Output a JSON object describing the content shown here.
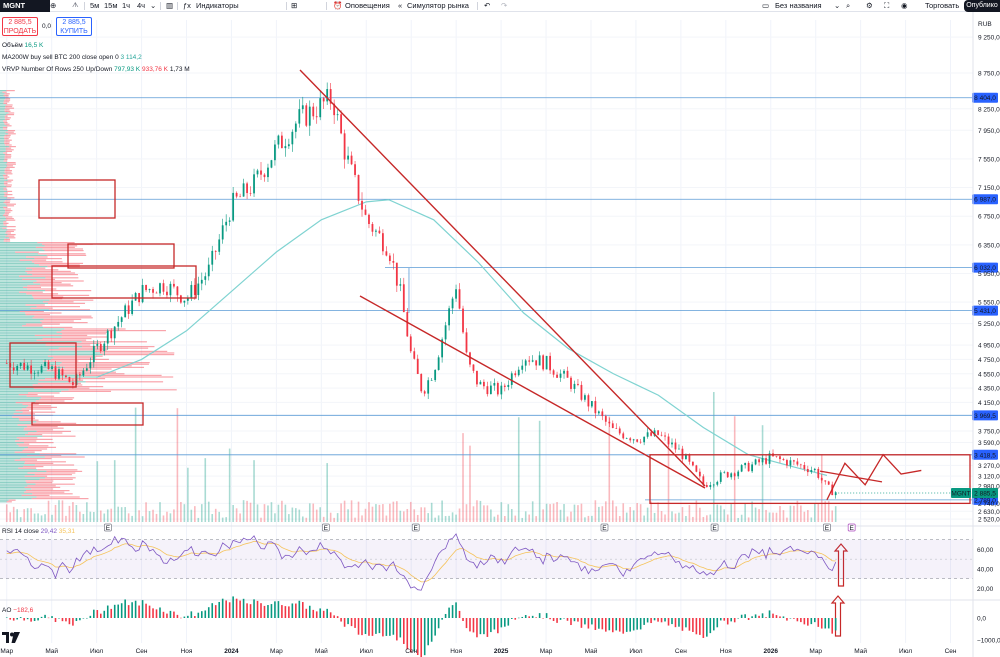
{
  "toolbar": {
    "symbol": "MGNT",
    "intervals": [
      "5м",
      "15м",
      "1ч",
      "4ч"
    ],
    "indicators_label": "Индикаторы",
    "alerts_label": "Оповещения",
    "replay_label": "Симулятор рынка",
    "layout_name": "Без названия",
    "trade_label": "Торговать",
    "publish_label": "Опублико"
  },
  "trade": {
    "sell_price": "2 885,5",
    "sell_label": "ПРОДАТЬ",
    "spread": "0,0",
    "buy_price": "2 885,5",
    "buy_label": "КУПИТЬ"
  },
  "legends": {
    "volume_label": "Объём",
    "volume_value": "16,5 K",
    "ma_label": "MA200W buy sell BTC 200 close open 0",
    "ma_value": "3 114,2",
    "vrvp_label": "VRVP Number Of Rows 250 Up/Down",
    "vrvp_up": "797,93 K",
    "vrvp_down": "933,76 K",
    "vrvp_total": "1,73 M",
    "rsi_label": "RSI 14 close",
    "rsi_value": "29,42",
    "rsi_ma_value": "35,31",
    "ao_label": "AO",
    "ao_value": "−182,6"
  },
  "chart_data": {
    "type": "line",
    "currency": "RUB",
    "price_ticks": [
      "9 250,0",
      "8 750,0",
      "8 250,0",
      "7 950,0",
      "7 550,0",
      "7 150,0",
      "6 750,0",
      "6 350,0",
      "5 950,0",
      "5 550,0",
      "5 250,0",
      "4 950,0",
      "4 750,0",
      "4 550,0",
      "4 350,0",
      "4 150,0",
      "3 750,0",
      "3 590,0",
      "3 270,0",
      "3 120,0",
      "2 980,0",
      "2 740,0",
      "2 630,0",
      "2 520,0"
    ],
    "price_tick_values": [
      9250,
      8750,
      8250,
      7950,
      7550,
      7150,
      6750,
      6350,
      5950,
      5550,
      5250,
      4950,
      4750,
      4550,
      4350,
      4150,
      3750,
      3590,
      3270,
      3120,
      2980,
      2740,
      2630,
      2520
    ],
    "ylim": [
      2480,
      9350
    ],
    "x_ticks": [
      "Мар",
      "Май",
      "Июл",
      "Сен",
      "Ноя",
      "2024",
      "Мар",
      "Май",
      "Июл",
      "Сен",
      "Ноя",
      "2025",
      "Мар",
      "Май",
      "Июл",
      "Сен",
      "Ноя",
      "2026",
      "Мар",
      "Май",
      "Июл",
      "Сен"
    ],
    "x_tick_index": [
      0,
      2,
      4,
      6,
      8,
      10,
      12,
      14,
      16,
      18,
      20,
      22,
      24,
      26,
      28,
      30,
      32,
      34,
      36,
      38,
      40,
      42
    ],
    "x_range_months": [
      -0.3,
      43
    ],
    "price_series": {
      "months": [
        0,
        1,
        2,
        3,
        4,
        5,
        6,
        7,
        8,
        9,
        10,
        11,
        12,
        13,
        14,
        14.5,
        15,
        16,
        17,
        17.5,
        18,
        18.5,
        19,
        20,
        20.5,
        21,
        22,
        22.5,
        23,
        24,
        25,
        26,
        27,
        28,
        29,
        30,
        31,
        32,
        33,
        34,
        35,
        36,
        36.5,
        37
      ],
      "close": [
        4700,
        4650,
        4600,
        4400,
        4900,
        5300,
        5700,
        5800,
        5600,
        6000,
        6900,
        7200,
        7700,
        8100,
        8300,
        8400,
        7700,
        6700,
        6300,
        5700,
        4800,
        4300,
        4600,
        5800,
        4700,
        4400,
        4300,
        4550,
        4800,
        4700,
        4450,
        4100,
        3750,
        3650,
        3700,
        3450,
        3000,
        3150,
        3250,
        3380,
        3300,
        3200,
        2950,
        2885
      ]
    },
    "ma_series": {
      "name": "MA200W",
      "months": [
        4,
        6,
        8,
        10,
        12,
        14,
        16,
        17,
        19,
        21,
        23,
        25,
        27,
        29,
        31,
        33,
        35,
        36.5
      ],
      "values": [
        4500,
        4750,
        5150,
        5700,
        6250,
        6700,
        6950,
        6980,
        6700,
        6100,
        5400,
        4900,
        4550,
        4250,
        3800,
        3420,
        3250,
        3130
      ]
    },
    "horizontal_levels": [
      8404,
      6987,
      6032,
      5431,
      3969.5,
      3418.5,
      2789
    ],
    "level_labels": [
      "8 404,0",
      "6 987,0",
      "6 032,0",
      "5 431,0",
      "3 969,5",
      "3 418,5",
      "2 789,0"
    ],
    "last_price": "2 885,5",
    "last_symbol": "MGNT",
    "projection": {
      "months": [
        36.5,
        37.3,
        38.2,
        39.0,
        39.8,
        40.7
      ],
      "values": [
        2790,
        3300,
        3000,
        3420,
        3150,
        3200
      ]
    },
    "rsi": {
      "ticks": [
        "60,00",
        "40,00",
        "20,00"
      ],
      "tick_values": [
        60,
        40,
        20
      ],
      "band": [
        30,
        70
      ],
      "ylim": [
        10,
        80
      ]
    },
    "ao": {
      "ticks": [
        "0,0",
        "−1000,0"
      ],
      "tick_values": [
        0,
        -1000
      ]
    },
    "earnings_marks": [
      "E",
      "E",
      "E",
      "E",
      "E",
      "E",
      "E"
    ],
    "earnings_months": [
      4.5,
      14.2,
      18.2,
      26.6,
      31.5,
      36.5,
      37.6
    ]
  },
  "colors": {
    "up": "#089981",
    "down": "#f23645",
    "ma": "#7fd3d1",
    "rsi": "#7e57c2",
    "rsi_ma": "#f5c35b",
    "level": "#5b9bd5",
    "annotation": "#c62828"
  }
}
